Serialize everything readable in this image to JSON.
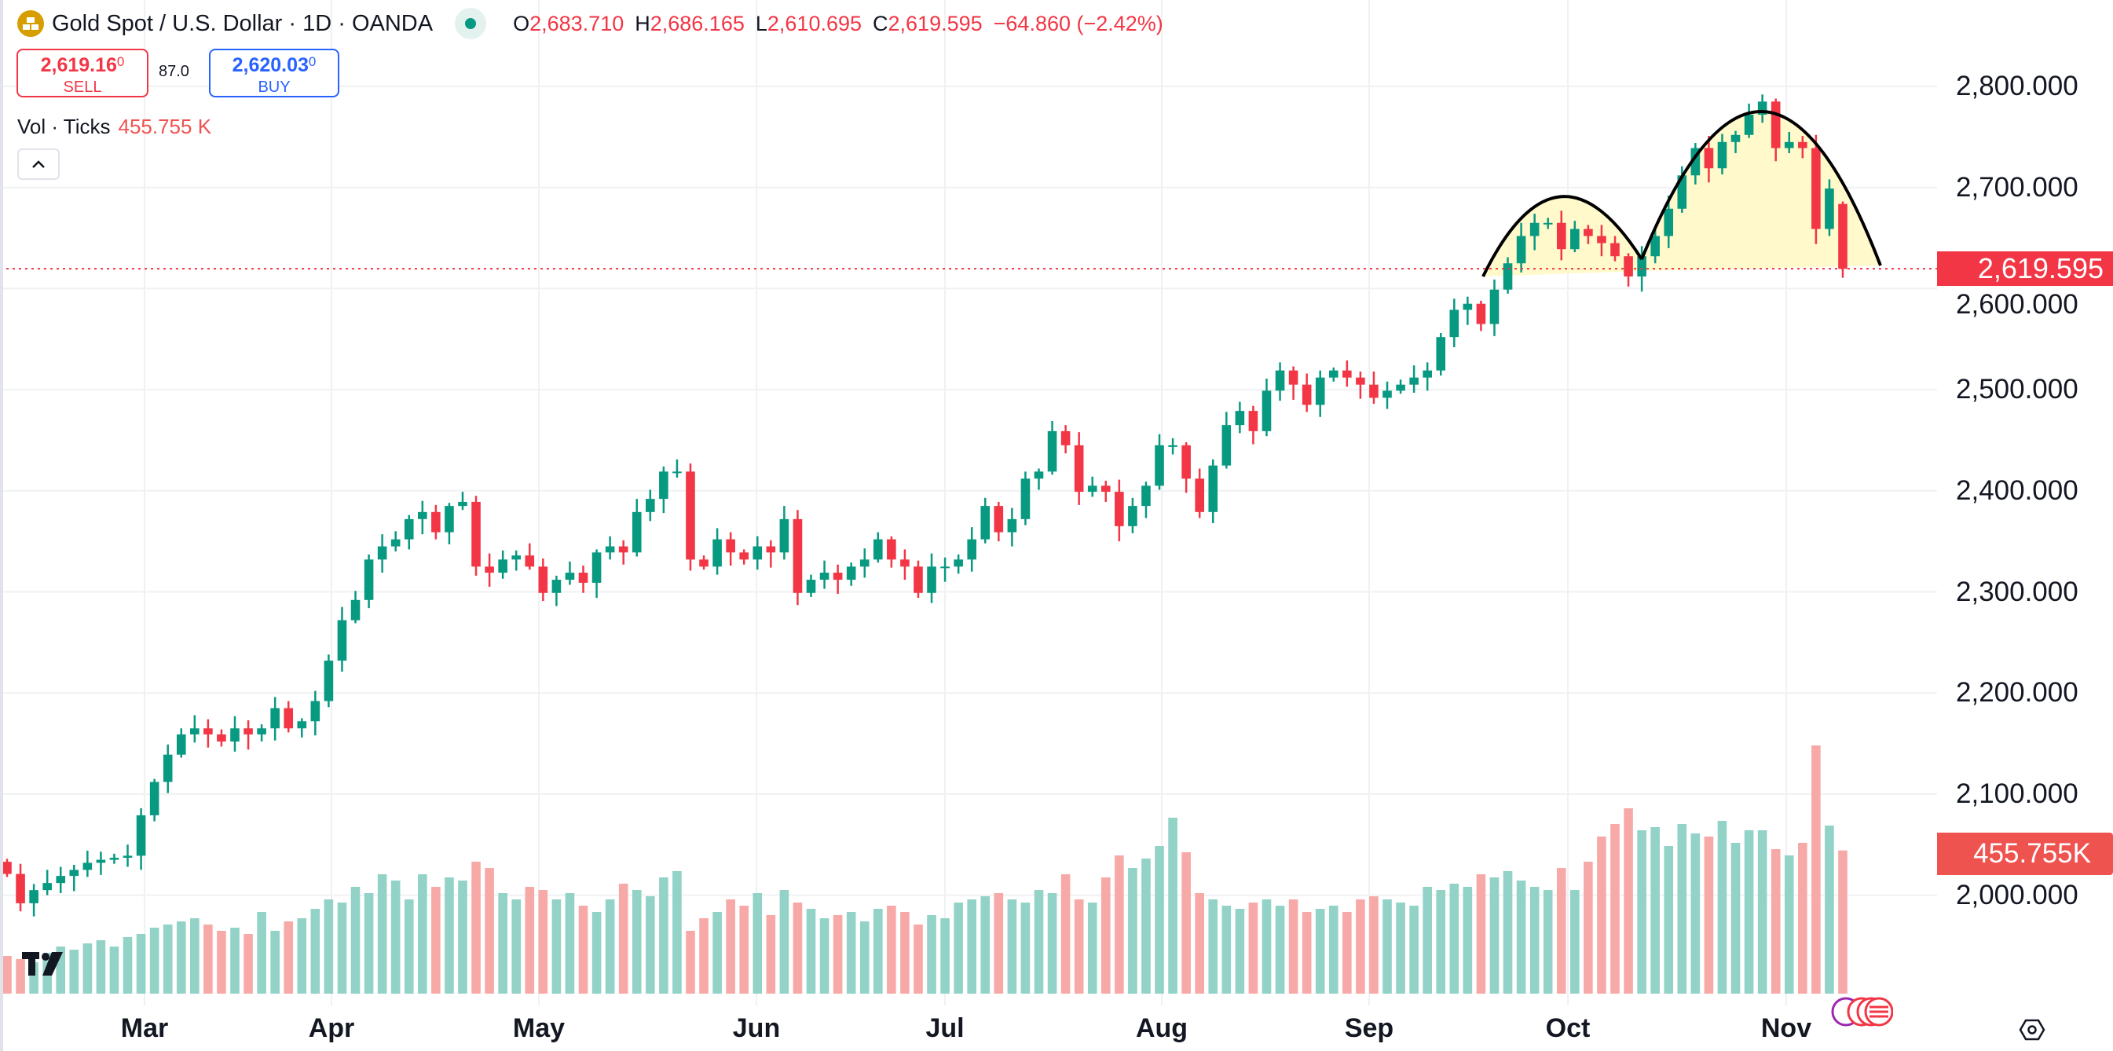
{
  "header": {
    "symbol": "Gold Spot / U.S. Dollar · 1D · OANDA",
    "logo_icon": "gold-bars-icon",
    "market_status_icon": "market-open-dot-icon",
    "open_label": "O",
    "open": "2,683.710",
    "high_label": "H",
    "high": "2,686.165",
    "low_label": "L",
    "low": "2,610.695",
    "close_label": "C",
    "close": "2,619.595",
    "change": "−64.860 (−2.42%)"
  },
  "trade": {
    "sell_price": "2,619.16",
    "sell_price_sup": "0",
    "sell_label": "SELL",
    "spread": "87.0",
    "buy_price": "2,620.03",
    "buy_price_sup": "0",
    "buy_label": "BUY"
  },
  "volume_legend": {
    "label": "Vol · Ticks",
    "value": "455.755 K"
  },
  "collapse_icon": "chevron-up-icon",
  "price_axis": [
    "2,800.000",
    "2,700.000",
    "2,600.000",
    "2,500.000",
    "2,400.000",
    "2,300.000",
    "2,200.000",
    "2,100.000",
    "2,000.000"
  ],
  "current_price_label": "2,619.595",
  "current_volume_label": "455.755K",
  "time_axis": [
    "Mar",
    "Apr",
    "May",
    "Jun",
    "Jul",
    "Aug",
    "Sep",
    "Oct",
    "Nov"
  ],
  "colors": {
    "up": "#089981",
    "down": "#f23645",
    "up_volume": "#92d2c7",
    "down_volume": "#f7a9a7",
    "pattern_fill": "#fff8c5",
    "pattern_stroke": "#000000"
  },
  "chart_data": {
    "type": "candlestick",
    "interval": "1D",
    "ylim": [
      1930,
      2860
    ],
    "yticks": [
      2000,
      2100,
      2200,
      2300,
      2400,
      2500,
      2600,
      2700,
      2800
    ],
    "grid": true,
    "last_candle": {
      "open": 2683.71,
      "high": 2686.165,
      "low": 2610.695,
      "close": 2619.595
    },
    "close": [
      2021,
      1992,
      2005,
      2012,
      2019,
      2025,
      2032,
      2035,
      2037,
      2039,
      2079,
      2112,
      2139,
      2159,
      2165,
      2159,
      2152,
      2165,
      2159,
      2165,
      2185,
      2165,
      2172,
      2192,
      2232,
      2272,
      2292,
      2332,
      2345,
      2352,
      2372,
      2379,
      2359,
      2385,
      2389,
      2325,
      2319,
      2332,
      2336,
      2325,
      2299,
      2312,
      2319,
      2309,
      2339,
      2345,
      2339,
      2379,
      2392,
      2419,
      2419,
      2332,
      2325,
      2352,
      2339,
      2332,
      2345,
      2339,
      2372,
      2299,
      2312,
      2319,
      2312,
      2325,
      2332,
      2352,
      2332,
      2325,
      2299,
      2325,
      2325,
      2332,
      2352,
      2385,
      2359,
      2372,
      2412,
      2419,
      2459,
      2445,
      2399,
      2405,
      2399,
      2365,
      2385,
      2405,
      2445,
      2445,
      2412,
      2379,
      2425,
      2465,
      2479,
      2459,
      2499,
      2519,
      2505,
      2485,
      2512,
      2519,
      2512,
      2505,
      2492,
      2499,
      2505,
      2512,
      2519,
      2552,
      2579,
      2585,
      2565,
      2599,
      2625,
      2652,
      2665,
      2665,
      2639,
      2659,
      2652,
      2645,
      2632,
      2612,
      2632,
      2652,
      2679,
      2712,
      2739,
      2719,
      2745,
      2752,
      2772,
      2785,
      2739,
      2745,
      2739,
      2659,
      2699,
      2619.595
    ],
    "volume_k": [
      120,
      110,
      100,
      130,
      150,
      140,
      160,
      170,
      150,
      180,
      190,
      210,
      220,
      230,
      240,
      220,
      200,
      210,
      190,
      260,
      200,
      230,
      240,
      270,
      300,
      290,
      340,
      320,
      380,
      360,
      300,
      380,
      340,
      370,
      360,
      420,
      400,
      320,
      300,
      340,
      330,
      300,
      320,
      280,
      260,
      300,
      350,
      330,
      310,
      370,
      390,
      200,
      240,
      260,
      300,
      280,
      320,
      250,
      330,
      290,
      270,
      240,
      250,
      260,
      230,
      270,
      280,
      260,
      220,
      250,
      240,
      290,
      300,
      310,
      320,
      300,
      290,
      330,
      320,
      380,
      300,
      290,
      370,
      440,
      400,
      430,
      470,
      560,
      450,
      320,
      300,
      280,
      270,
      290,
      300,
      280,
      300,
      260,
      270,
      280,
      260,
      300,
      310,
      300,
      290,
      280,
      340,
      330,
      350,
      340,
      380,
      370,
      390,
      360,
      340,
      330,
      400,
      330,
      420,
      500,
      540,
      590,
      520,
      530,
      470,
      540,
      510,
      500,
      550,
      480,
      520,
      520,
      460,
      440,
      480,
      790,
      535,
      455.755
    ]
  }
}
